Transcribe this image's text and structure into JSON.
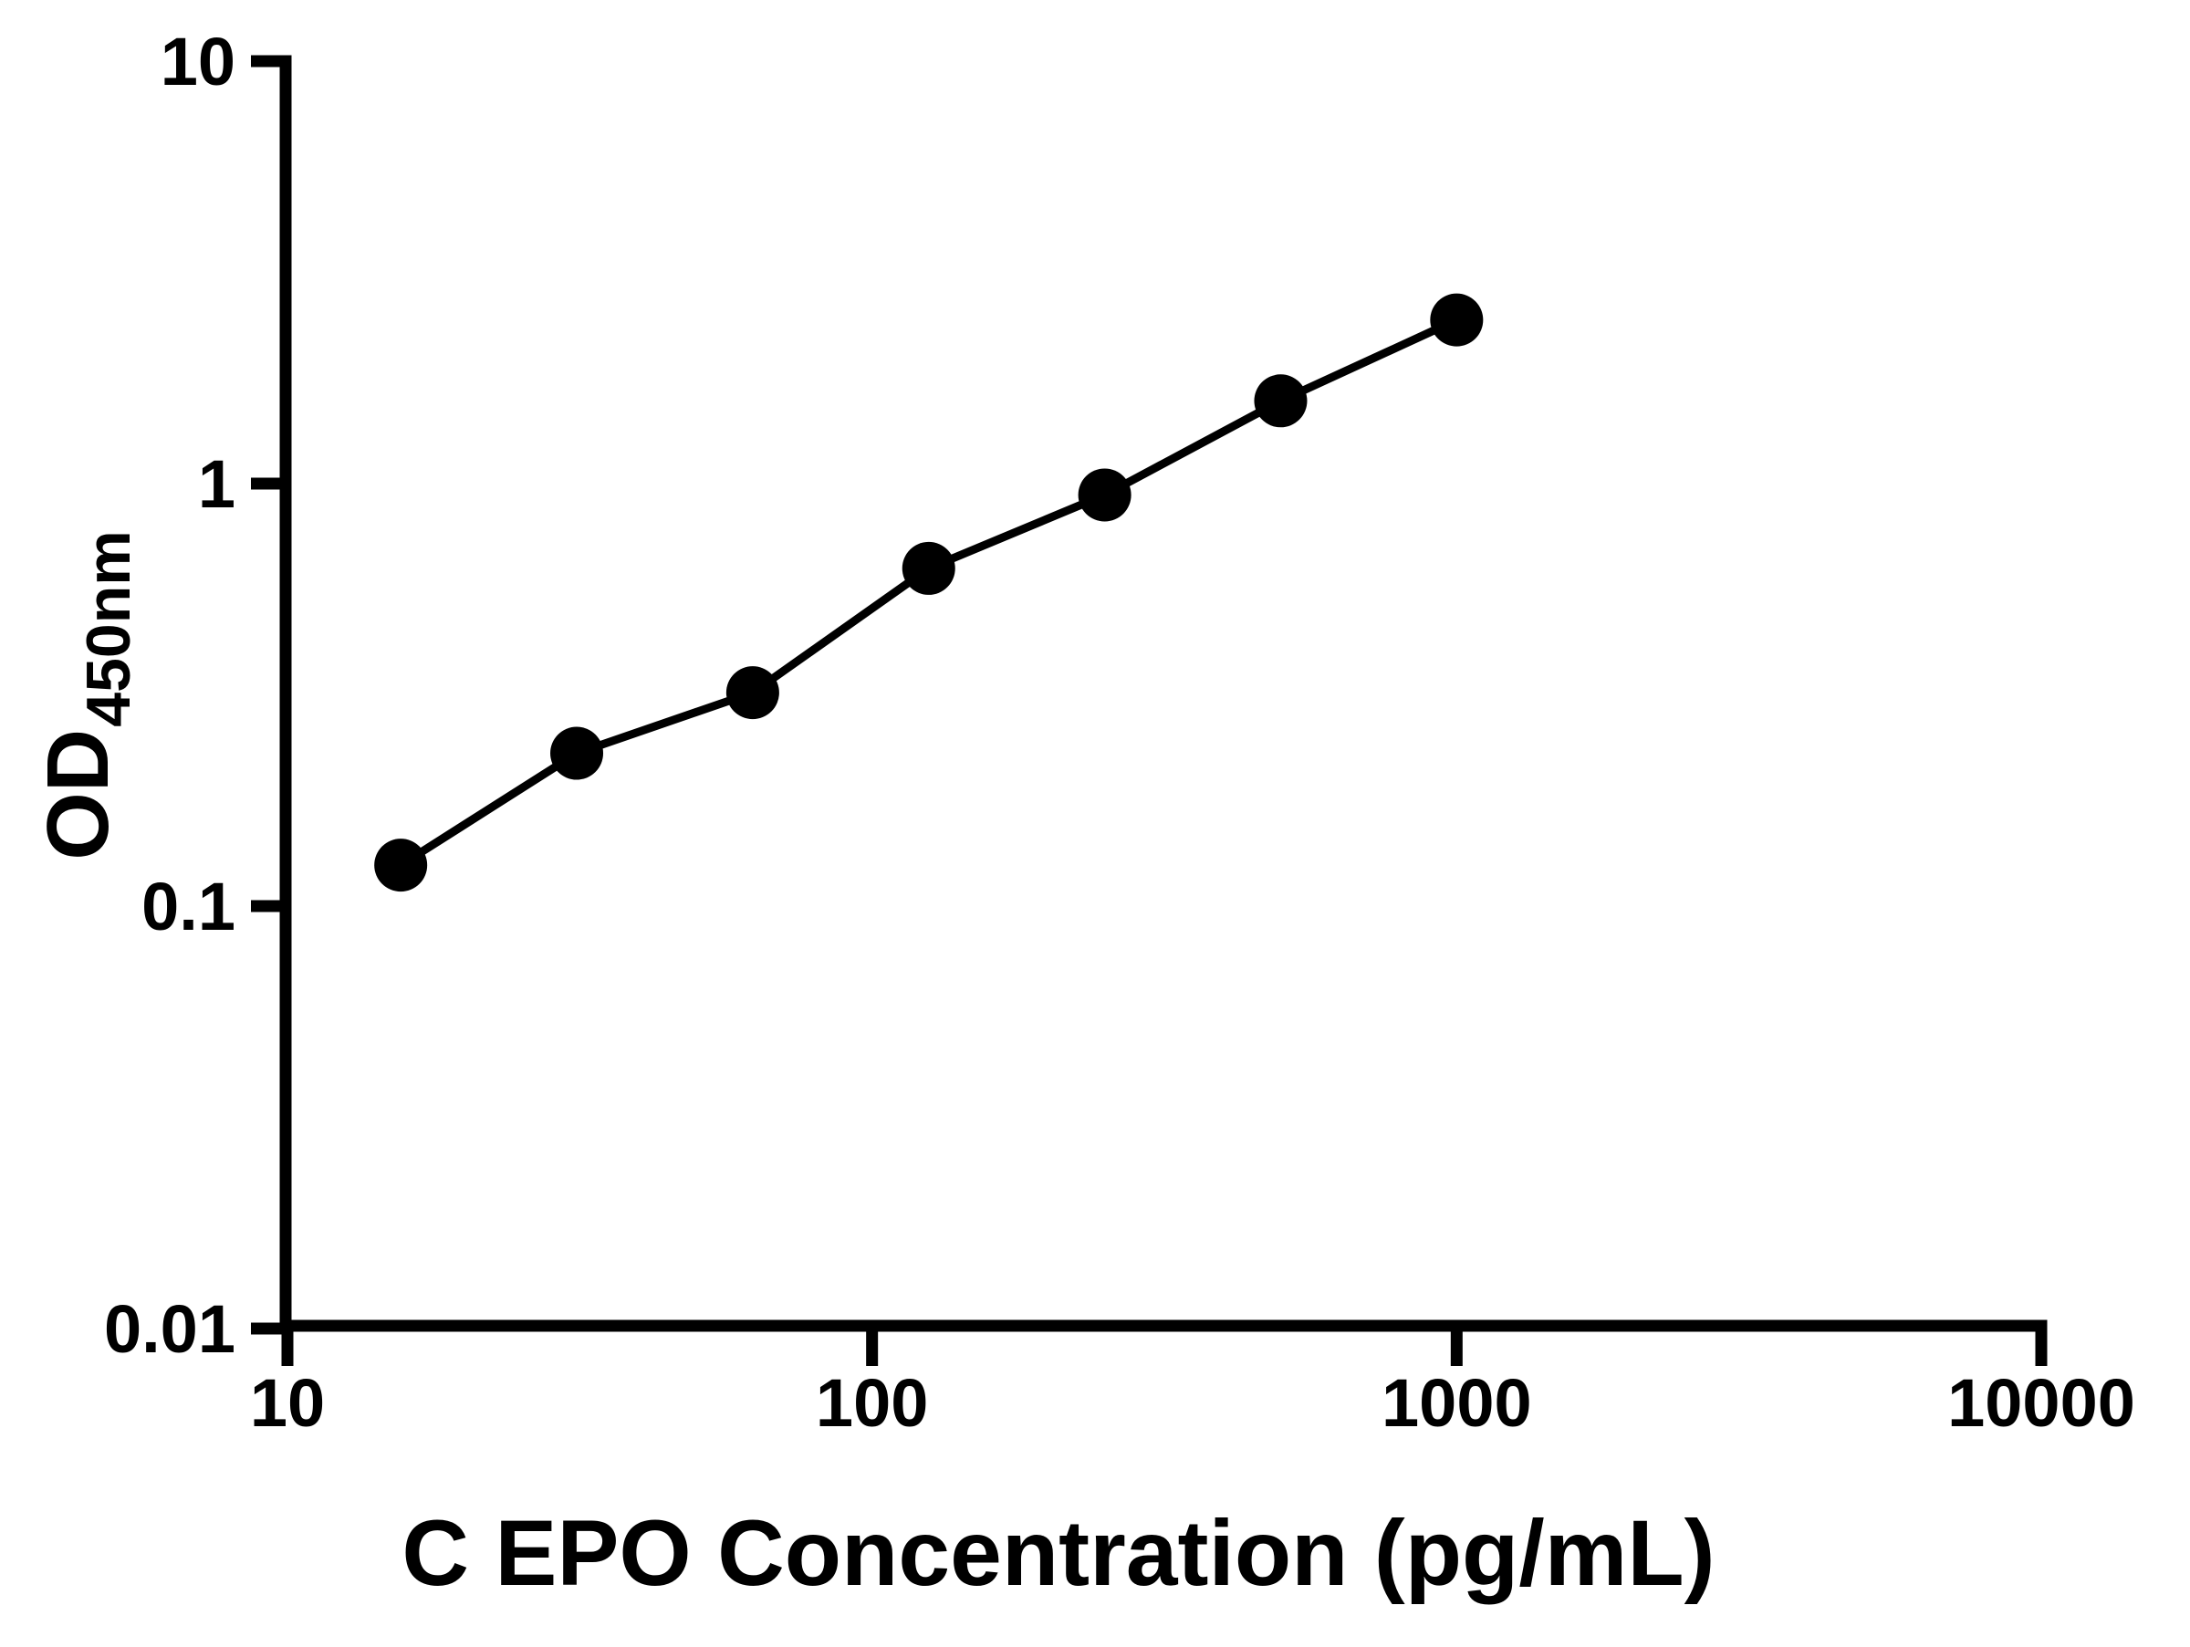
{
  "chart_data": {
    "type": "line",
    "title": "",
    "xlabel": "C EPO Concentration (pg/mL)",
    "ylabel_main": "OD",
    "ylabel_sub": "450nm",
    "x_scale": "log",
    "y_scale": "log",
    "xlim": [
      10,
      10000
    ],
    "ylim": [
      0.01,
      10
    ],
    "x_ticks": [
      10,
      100,
      1000,
      10000
    ],
    "x_tick_labels": [
      "10",
      "100",
      "1000",
      "10000"
    ],
    "y_ticks": [
      0.01,
      0.1,
      1,
      10
    ],
    "y_tick_labels": [
      "0.01",
      "0.1",
      "1",
      "10"
    ],
    "grid": false,
    "legend": false,
    "series": [
      {
        "marker": "circle",
        "x": [
          15.625,
          31.25,
          62.5,
          125,
          250,
          500,
          1000
        ],
        "y": [
          0.125,
          0.23,
          0.32,
          0.63,
          0.94,
          1.57,
          2.44
        ]
      }
    ],
    "colors": {
      "axis": "#000000",
      "line": "#000000",
      "marker": "#000000",
      "text": "#000000",
      "background": "#ffffff"
    }
  }
}
